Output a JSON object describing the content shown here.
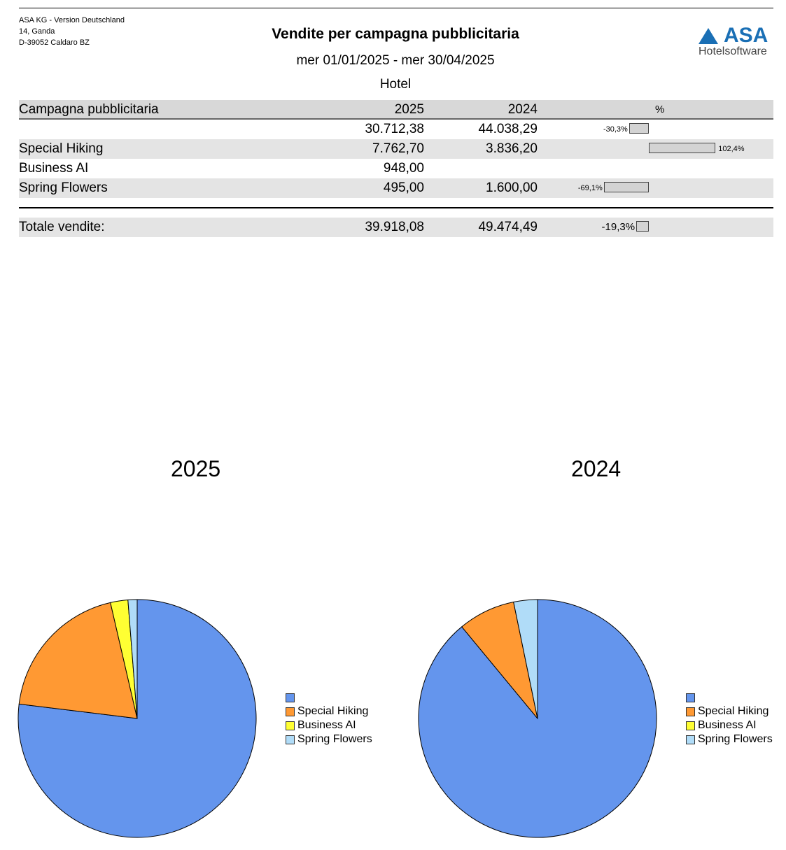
{
  "header": {
    "company": [
      "ASA KG - Version Deutschland",
      "14, Ganda",
      "D-39052 Caldaro BZ"
    ],
    "title": "Vendite per campagna pubblicitaria",
    "period": "mer 01/01/2025 - mer 30/04/2025",
    "scope": "Hotel",
    "logo": {
      "brand": "ASA",
      "sub": "Hotelsoftware"
    }
  },
  "table": {
    "columns": [
      "Campagna pubblicitaria",
      "2025",
      "2024",
      "%"
    ],
    "rows": [
      {
        "name": "",
        "v2025": "30.712,38",
        "v2024": "44.038,29",
        "pct": "-30,3%",
        "pct_value": -30.3
      },
      {
        "name": "Special Hiking",
        "v2025": "7.762,70",
        "v2024": "3.836,20",
        "pct": "102,4%",
        "pct_value": 102.4
      },
      {
        "name": "Business AI",
        "v2025": "948,00",
        "v2024": "",
        "pct": "",
        "pct_value": null
      },
      {
        "name": "Spring Flowers",
        "v2025": "495,00",
        "v2024": "1.600,00",
        "pct": "-69,1%",
        "pct_value": -69.1
      }
    ],
    "total": {
      "label": "Totale vendite:",
      "v2025": "39.918,08",
      "v2024": "49.474,49",
      "pct": "-19,3%",
      "pct_value": -19.3
    }
  },
  "chart_data": [
    {
      "type": "pie",
      "title": "2025",
      "labels": [
        "",
        "Special Hiking",
        "Business AI",
        "Spring Flowers"
      ],
      "values": [
        30712.38,
        7762.7,
        948.0,
        495.0
      ],
      "colors": [
        "#6495ED",
        "#FF9933",
        "#FFFF33",
        "#B0DCF8"
      ],
      "legend": "right"
    },
    {
      "type": "pie",
      "title": "2024",
      "labels": [
        "",
        "Special Hiking",
        "Business AI",
        "Spring Flowers"
      ],
      "values": [
        44038.29,
        3836.2,
        0,
        1600.0
      ],
      "colors": [
        "#6495ED",
        "#FF9933",
        "#FFFF33",
        "#B0DCF8"
      ],
      "legend": "right"
    }
  ]
}
